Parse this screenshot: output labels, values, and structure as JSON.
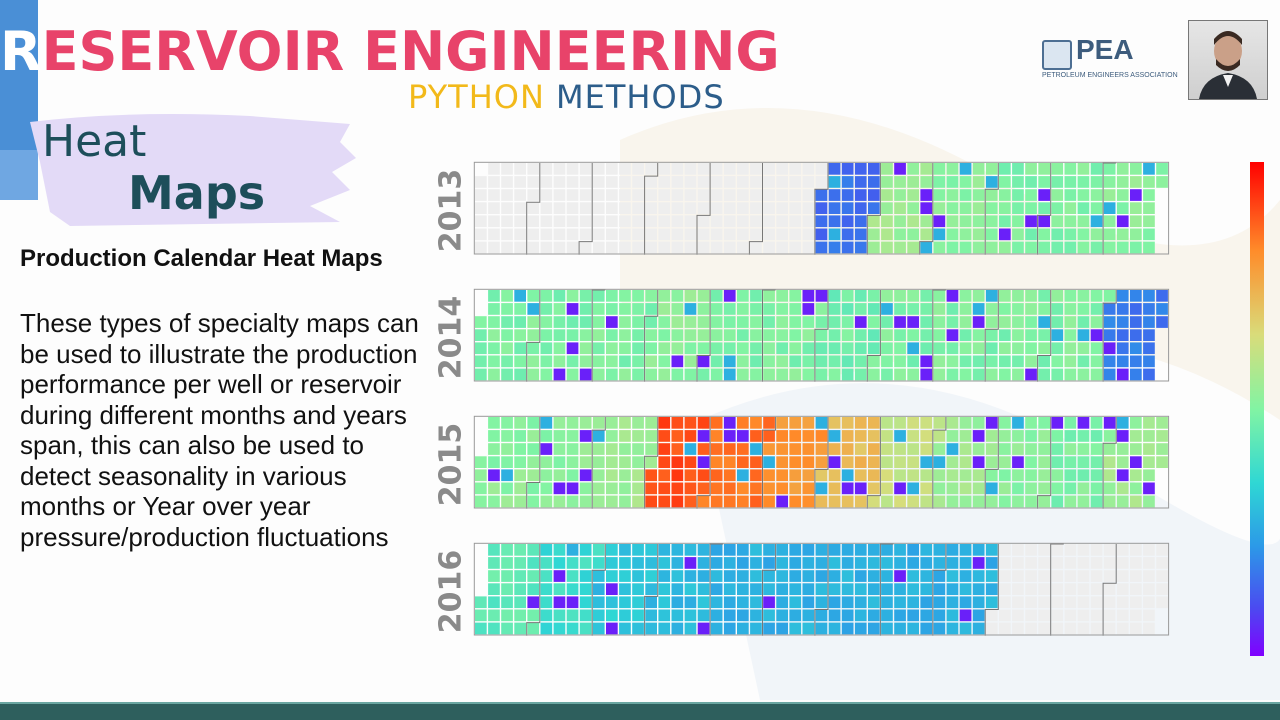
{
  "header": {
    "title_first_letter": "R",
    "title_rest": "ESERVOIR ENGINEERING",
    "subtitle_python": "PYTHON",
    "subtitle_methods": "METHODS"
  },
  "section": {
    "word1": "Heat",
    "word2": "Maps"
  },
  "description": {
    "title": "Production Calendar Heat Maps",
    "body": "These types of specialty maps can be used to illustrate the production performance per well or reservoir during different months and years span, this can also be used to detect seasonality in various months or Year over year pressure/production fluctuations"
  },
  "logo": {
    "name": "PEA",
    "full_name": "PETROLEUM ENGINEERS ASSOCIATION"
  },
  "colors": {
    "title": "#e8436a",
    "python": "#f2b91a",
    "methods": "#2c5d8a",
    "heat_text": "#1d4e5a",
    "bottom_bar": "#2e5f5d"
  },
  "chart_data": {
    "type": "heatmap",
    "title": "",
    "years": [
      "2013",
      "2014",
      "2015",
      "2016"
    ],
    "colormap": "rainbow",
    "data_start": {
      "2013": "2013-07",
      "2016_end": "2016-09"
    },
    "monthly_level": {
      "2013": [
        null,
        null,
        null,
        null,
        null,
        null,
        0.18,
        0.55,
        0.52,
        0.5,
        0.5,
        0.52
      ],
      "2014": [
        0.5,
        0.5,
        0.5,
        0.52,
        0.5,
        0.5,
        0.48,
        0.5,
        0.5,
        0.5,
        0.5,
        0.2
      ],
      "2015": [
        0.52,
        0.52,
        0.55,
        0.9,
        0.85,
        0.8,
        0.72,
        0.62,
        0.55,
        0.52,
        0.5,
        0.55
      ],
      "2016": [
        0.45,
        0.4,
        0.35,
        0.32,
        0.3,
        0.3,
        0.3,
        0.3,
        0.3,
        null,
        null,
        null
      ]
    },
    "colorbar": {
      "position": "right",
      "scale": "0-1"
    }
  }
}
